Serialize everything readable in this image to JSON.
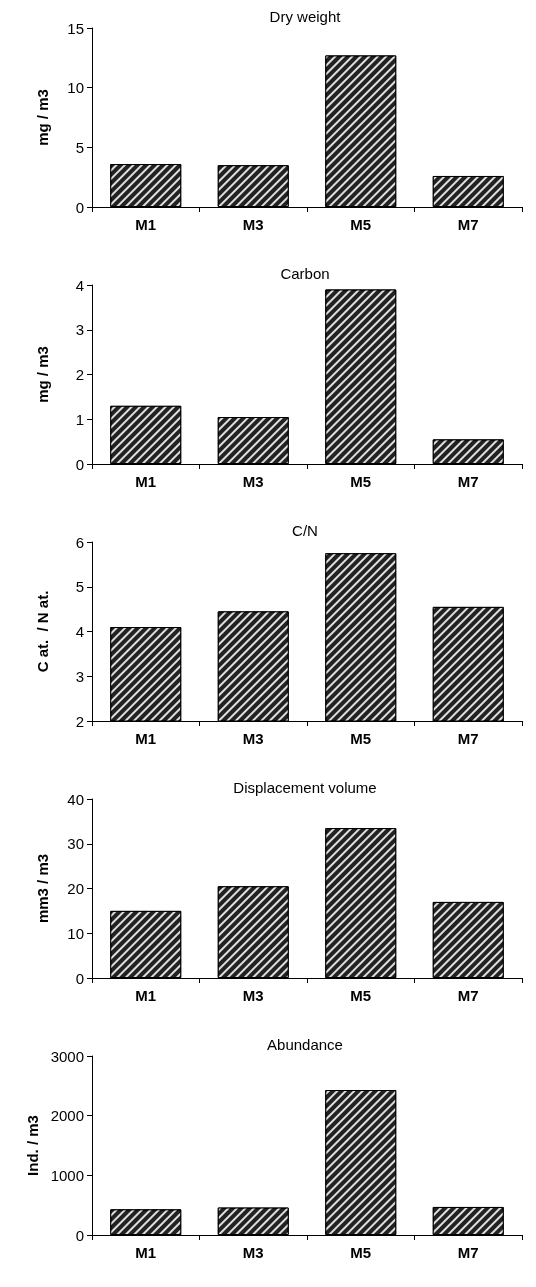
{
  "chart_data": [
    {
      "type": "bar",
      "title": "Dry weight",
      "ylabel": "mg / m3",
      "categories": [
        "M1",
        "M3",
        "M5",
        "M7"
      ],
      "values": [
        3.6,
        3.5,
        12.7,
        2.6
      ],
      "color": "#222222",
      "ylim": [
        0,
        15
      ],
      "yticks": [
        0,
        5,
        10,
        15
      ],
      "grid": false
    },
    {
      "type": "bar",
      "title": "Carbon",
      "ylabel": "mg / m3",
      "categories": [
        "M1",
        "M3",
        "M5",
        "M7"
      ],
      "values": [
        1.3,
        1.05,
        3.9,
        0.55
      ],
      "color": "#222222",
      "ylim": [
        0,
        4
      ],
      "yticks": [
        0,
        1,
        2,
        3,
        4
      ],
      "grid": false
    },
    {
      "type": "bar",
      "title": "C/N",
      "ylabel": "C at.  / N at.",
      "categories": [
        "M1",
        "M3",
        "M5",
        "M7"
      ],
      "values": [
        4.1,
        4.45,
        5.75,
        4.55
      ],
      "color": "#222222",
      "ylim": [
        2,
        6
      ],
      "yticks": [
        2,
        3,
        4,
        5,
        6
      ],
      "grid": false
    },
    {
      "type": "bar",
      "title": "Displacement volume",
      "ylabel": "mm3 / m3",
      "categories": [
        "M1",
        "M3",
        "M5",
        "M7"
      ],
      "values": [
        15,
        20.5,
        33.5,
        17
      ],
      "color": "#222222",
      "ylim": [
        0,
        40
      ],
      "yticks": [
        0,
        10,
        20,
        30,
        40
      ],
      "grid": false
    },
    {
      "type": "bar",
      "title": "Abundance",
      "ylabel": "Ind. / m3",
      "categories": [
        "M1",
        "M3",
        "M5",
        "M7"
      ],
      "values": [
        430,
        460,
        2430,
        470
      ],
      "color": "#222222",
      "ylim": [
        0,
        3000
      ],
      "yticks": [
        0,
        1000,
        2000,
        3000
      ],
      "grid": false
    }
  ]
}
